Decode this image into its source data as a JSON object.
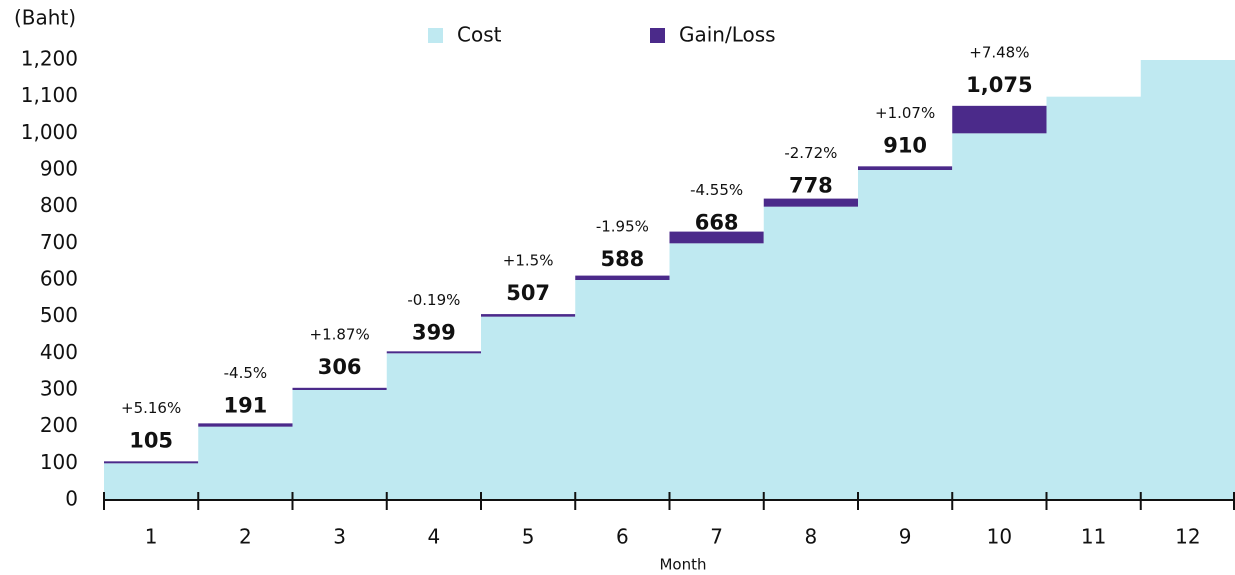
{
  "chart_data": {
    "type": "bar",
    "y_label": "(Baht)",
    "x_label": "Month",
    "categories": [
      "1",
      "2",
      "3",
      "4",
      "5",
      "6",
      "7",
      "8",
      "9",
      "10",
      "11",
      "12"
    ],
    "series": [
      {
        "name": "Cost",
        "color": "#bfe9f1",
        "values": [
          100,
          200,
          300,
          400,
          500,
          600,
          700,
          800,
          900,
          1000,
          1100,
          1200
        ]
      },
      {
        "name": "Gain/Loss",
        "color": "#4b2a8a",
        "values": [
          5,
          -9,
          6,
          -1,
          7,
          -12,
          -32,
          -22,
          10,
          75,
          null,
          null
        ]
      }
    ],
    "totals": [
      105,
      191,
      306,
      399,
      507,
      588,
      668,
      778,
      910,
      1075,
      null,
      null
    ],
    "total_labels": [
      "105",
      "191",
      "306",
      "399",
      "507",
      "588",
      "668",
      "778",
      "910",
      "1,075",
      null,
      null
    ],
    "change_labels": [
      "+5.16%",
      "-4.5%",
      "+1.87%",
      "-0.19%",
      "+1.5%",
      "-1.95%",
      "-4.55%",
      "-2.72%",
      "+1.07%",
      "+7.48%",
      null,
      null
    ],
    "ylim": [
      0,
      1200
    ],
    "yticks": [
      0,
      100,
      200,
      300,
      400,
      500,
      600,
      700,
      800,
      900,
      {
        "value": 1000,
        "label": "1,000"
      },
      {
        "value": 1100,
        "label": "1,100"
      },
      {
        "value": 1200,
        "label": "1,200"
      }
    ]
  }
}
